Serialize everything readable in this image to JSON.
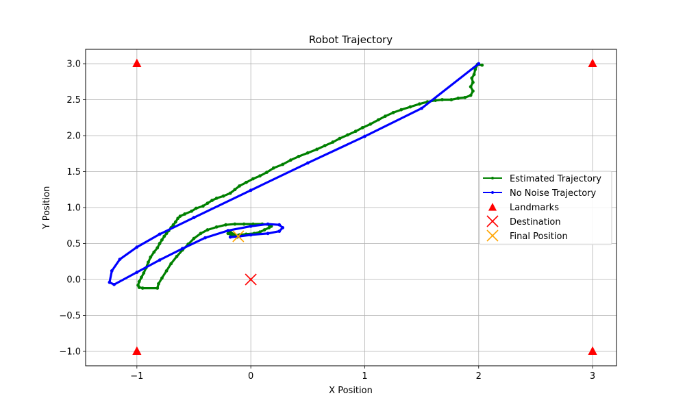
{
  "chart_data": {
    "type": "line",
    "title": "Robot Trajectory",
    "xlabel": "X Position",
    "ylabel": "Y Position",
    "xlim": [
      -1.45,
      3.21
    ],
    "ylim": [
      -1.2,
      3.2
    ],
    "xticks": [
      -1,
      0,
      1,
      2,
      3
    ],
    "xtick_labels": [
      "−1",
      "0",
      "1",
      "2",
      "3"
    ],
    "yticks": [
      -1.0,
      -0.5,
      0.0,
      0.5,
      1.0,
      1.5,
      2.0,
      2.5,
      3.0
    ],
    "ytick_labels": [
      "−1.0",
      "−0.5",
      "0.0",
      "0.5",
      "1.0",
      "1.5",
      "2.0",
      "2.5",
      "3.0"
    ],
    "grid": true,
    "legend_position": "center-right",
    "colors": {
      "estimated": "#008000",
      "no_noise": "#0000ff",
      "landmarks": "#ff0000",
      "destination": "#ff0000",
      "final": "#ffa500"
    },
    "series": [
      {
        "name": "Estimated Trajectory",
        "style": "line-dot",
        "points": [
          [
            2.03,
            2.98
          ],
          [
            1.99,
            2.99
          ],
          [
            1.97,
            2.92
          ],
          [
            1.96,
            2.85
          ],
          [
            1.94,
            2.8
          ],
          [
            1.95,
            2.74
          ],
          [
            1.93,
            2.68
          ],
          [
            1.95,
            2.62
          ],
          [
            1.93,
            2.56
          ],
          [
            1.88,
            2.53
          ],
          [
            1.82,
            2.52
          ],
          [
            1.76,
            2.5
          ],
          [
            1.68,
            2.5
          ],
          [
            1.62,
            2.49
          ],
          [
            1.55,
            2.47
          ],
          [
            1.48,
            2.44
          ],
          [
            1.4,
            2.4
          ],
          [
            1.32,
            2.36
          ],
          [
            1.25,
            2.32
          ],
          [
            1.18,
            2.27
          ],
          [
            1.12,
            2.22
          ],
          [
            1.05,
            2.16
          ],
          [
            0.98,
            2.11
          ],
          [
            0.92,
            2.06
          ],
          [
            0.85,
            2.01
          ],
          [
            0.78,
            1.96
          ],
          [
            0.72,
            1.91
          ],
          [
            0.65,
            1.86
          ],
          [
            0.58,
            1.81
          ],
          [
            0.5,
            1.76
          ],
          [
            0.42,
            1.71
          ],
          [
            0.35,
            1.66
          ],
          [
            0.28,
            1.6
          ],
          [
            0.2,
            1.55
          ],
          [
            0.14,
            1.49
          ],
          [
            0.08,
            1.44
          ],
          [
            0.02,
            1.4
          ],
          [
            -0.04,
            1.35
          ],
          [
            -0.1,
            1.3
          ],
          [
            -0.14,
            1.25
          ],
          [
            -0.18,
            1.2
          ],
          [
            -0.24,
            1.16
          ],
          [
            -0.3,
            1.13
          ],
          [
            -0.34,
            1.1
          ],
          [
            -0.38,
            1.06
          ],
          [
            -0.42,
            1.02
          ],
          [
            -0.48,
            0.99
          ],
          [
            -0.52,
            0.95
          ],
          [
            -0.58,
            0.91
          ],
          [
            -0.62,
            0.88
          ],
          [
            -0.64,
            0.85
          ],
          [
            -0.66,
            0.8
          ],
          [
            -0.68,
            0.76
          ],
          [
            -0.7,
            0.72
          ],
          [
            -0.72,
            0.68
          ],
          [
            -0.74,
            0.64
          ],
          [
            -0.76,
            0.6
          ],
          [
            -0.78,
            0.55
          ],
          [
            -0.8,
            0.5
          ],
          [
            -0.82,
            0.44
          ],
          [
            -0.85,
            0.38
          ],
          [
            -0.88,
            0.31
          ],
          [
            -0.9,
            0.24
          ],
          [
            -0.92,
            0.16
          ],
          [
            -0.94,
            0.09
          ],
          [
            -0.96,
            0.03
          ],
          [
            -0.98,
            -0.03
          ],
          [
            -0.99,
            -0.08
          ],
          [
            -0.98,
            -0.11
          ],
          [
            -0.95,
            -0.12
          ],
          [
            -0.82,
            -0.12
          ],
          [
            -0.81,
            -0.06
          ],
          [
            -0.78,
            0.02
          ],
          [
            -0.74,
            0.12
          ],
          [
            -0.7,
            0.22
          ],
          [
            -0.65,
            0.32
          ],
          [
            -0.6,
            0.41
          ],
          [
            -0.55,
            0.49
          ],
          [
            -0.5,
            0.57
          ],
          [
            -0.44,
            0.64
          ],
          [
            -0.38,
            0.69
          ],
          [
            -0.3,
            0.73
          ],
          [
            -0.22,
            0.76
          ],
          [
            -0.14,
            0.77
          ],
          [
            -0.06,
            0.77
          ],
          [
            0.02,
            0.77
          ],
          [
            0.1,
            0.77
          ],
          [
            0.16,
            0.76
          ],
          [
            0.18,
            0.74
          ],
          [
            0.16,
            0.72
          ],
          [
            0.12,
            0.69
          ],
          [
            0.08,
            0.66
          ],
          [
            0.03,
            0.64
          ],
          [
            -0.04,
            0.63
          ],
          [
            -0.1,
            0.62
          ],
          [
            -0.16,
            0.61
          ],
          [
            -0.2,
            0.64
          ],
          [
            -0.18,
            0.66
          ],
          [
            -0.14,
            0.62
          ],
          [
            -0.12,
            0.59
          ]
        ]
      },
      {
        "name": "No Noise Trajectory",
        "style": "line-dot",
        "points": [
          [
            2.0,
            3.0
          ],
          [
            1.5,
            2.38
          ],
          [
            1.0,
            1.99
          ],
          [
            0.5,
            1.62
          ],
          [
            0.0,
            1.24
          ],
          [
            -0.5,
            0.86
          ],
          [
            -0.8,
            0.63
          ],
          [
            -1.0,
            0.45
          ],
          [
            -1.15,
            0.28
          ],
          [
            -1.22,
            0.12
          ],
          [
            -1.24,
            -0.04
          ],
          [
            -1.2,
            -0.07
          ],
          [
            -1.0,
            0.1
          ],
          [
            -0.8,
            0.27
          ],
          [
            -0.6,
            0.43
          ],
          [
            -0.4,
            0.58
          ],
          [
            -0.2,
            0.68
          ],
          [
            0.0,
            0.74
          ],
          [
            0.15,
            0.77
          ],
          [
            0.25,
            0.76
          ],
          [
            0.28,
            0.72
          ],
          [
            0.25,
            0.67
          ],
          [
            0.15,
            0.64
          ],
          [
            0.0,
            0.62
          ],
          [
            -0.1,
            0.6
          ],
          [
            -0.18,
            0.59
          ]
        ]
      }
    ],
    "landmarks": [
      [
        -1,
        3
      ],
      [
        3,
        3
      ],
      [
        -1,
        -1
      ],
      [
        3,
        -1
      ]
    ],
    "destination": [
      0,
      0
    ],
    "final_position": [
      -0.11,
      0.6
    ],
    "legend": [
      {
        "label": "Estimated Trajectory",
        "marker": "line-dot",
        "color": "#008000"
      },
      {
        "label": "No Noise Trajectory",
        "marker": "line-dot",
        "color": "#0000ff"
      },
      {
        "label": "Landmarks",
        "marker": "triangle",
        "color": "#ff0000"
      },
      {
        "label": "Destination",
        "marker": "x",
        "color": "#ff0000"
      },
      {
        "label": "Final Position",
        "marker": "x",
        "color": "#ffa500"
      }
    ]
  }
}
